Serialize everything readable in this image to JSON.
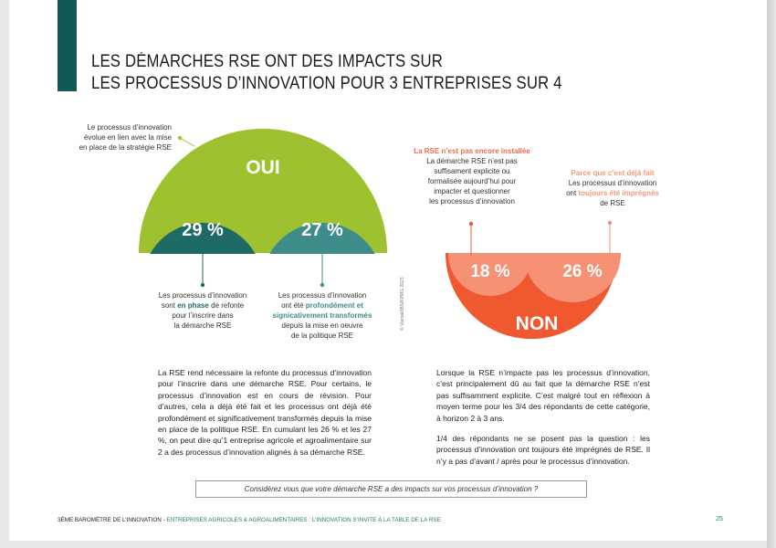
{
  "title": {
    "line1": "LES DÉMARCHES RSE ONT DES IMPACTS SUR",
    "line2": "LES PROCESSUS D’INNOVATION POUR 3 ENTREPRISES SUR 4"
  },
  "colors": {
    "teal_bar": "#0f5a57",
    "oui_green": "#9dc12f",
    "dark_teal": "#1e6a66",
    "mid_teal": "#3f8d8a",
    "non_orange": "#f0582f",
    "light_orange": "#f79173"
  },
  "oui": {
    "label": "OUI",
    "annotation": [
      "Le processus d’innovation",
      "évolue en lien avec la mise",
      "en place de la stratégie RSE"
    ],
    "left_pct": "29 %",
    "right_pct": "27 %",
    "left_caption": {
      "l1": "Les processus d’innovation",
      "l2_pre": "sont ",
      "l2_hl": "en phase",
      "l2_post": " de refonte",
      "l3": "pour l’inscrire dans",
      "l4": "la démarche RSE"
    },
    "right_caption": {
      "l1": "Les processus d’innovation",
      "l2_pre": "ont été ",
      "l2_hl": "profondément et",
      "l3_hl": "signicativement transformés",
      "l4": "depuis la mise en oeuvre",
      "l5": "de la politique RSE"
    }
  },
  "non": {
    "label": "NON",
    "left_pct": "18 %",
    "right_pct": "26 %",
    "left_caption": {
      "heading": "La RSE n’est pas encore installée",
      "l1": "La démarche RSE n’est pas",
      "l2": "suffisament explicite ou",
      "l3": "formalisée aujourd’hui pour",
      "l4": "impacter et questionner",
      "l5": "les processus d’innovation"
    },
    "right_caption": {
      "heading": "Parce que c’est déjà fait",
      "l1": "Les processus d’innovation",
      "l2_pre": "ont ",
      "l2_hl": "toujours été imprégnés",
      "l3": "de RSE"
    }
  },
  "credit": "© Viamat/IBS/KPMG 2023",
  "paragraphs": {
    "left": "La RSE rend nécessaire la refonte du processus d’innovation pour l’inscrire dans une démarche RSE. Pour certains, le processus d’innovation est en cours de révision. Pour d’autres, cela a déjà été fait et les processus ont déjà été profondément et significativement transformés depuis la mise en place de la politique RSE. En cumulant les 26 % et les 27 %, on peut dire qu’1 entreprise agricole et agroalimentaire sur 2 a des processus d’innovation alignés à sa démarche RSE.",
    "right_1": "Lorsque la RSE n’impacte pas les processus d’innovation, c’est principalement dû au fait que la démarche RSE n’est pas suffisamment explicite. C’est malgré tout en réflexion à moyen terme pour les 3/4 des répondants de cette catégorie, à horizon 2 à 3 ans.",
    "right_2": "1/4 des répondants ne se posent pas la question : les processus d’innovation ont toujours été imprégnés de RSE. Il n’y a pas d’avant / après pour le processus d’innovation."
  },
  "question": "Considérez vous que votre démarche RSE a des impacts sur vos processus d’innovation ?",
  "footer": {
    "part1": "3ÈME BAROMÈTRE DE L’INNOVATION - ",
    "part2": "ENTREPRISES AGRICOLES & AGROALIMENTAIRES : L’INNOVATION S’INVITE À LA TABLE DE LA RSE"
  },
  "page_number": "25"
}
